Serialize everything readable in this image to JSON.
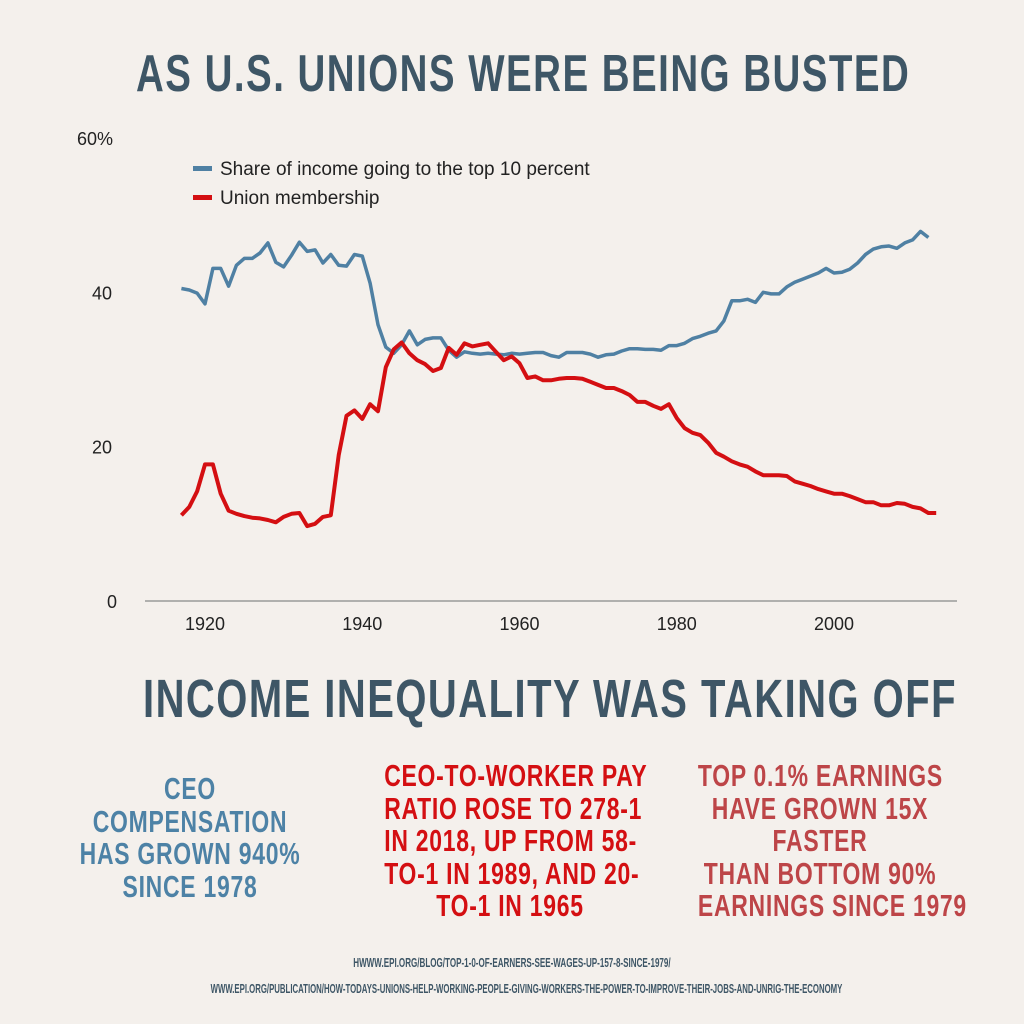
{
  "title": "AS U.S. UNIONS WERE BEING BUSTED",
  "subtitle": "INCOME INEQUALITY WAS TAKING OFF",
  "facts": [
    {
      "lines": [
        "CEO",
        "COMPENSATION",
        "HAS GROWN 940%",
        "SINCE 1978"
      ],
      "color": "#4d82a6"
    },
    {
      "lines": [
        "CEO-TO-WORKER PAY",
        "RATIO ROSE TO 278-1",
        "IN 2018, UP FROM 58-",
        "TO-1 IN 1989, AND 20-",
        "TO-1 IN 1965"
      ],
      "color": "#d40f12"
    },
    {
      "lines": [
        "TOP 0.1% EARNINGS",
        "HAVE GROWN 15X",
        "FASTER",
        "THAN BOTTOM 90%",
        "EARNINGS SINCE 1979"
      ],
      "color": "#bd4548"
    }
  ],
  "sources": [
    "HWWW.EPI.ORG/BLOG/TOP-1-0-OF-EARNERS-SEE-WAGES-UP-157-8-SINCE-1979/",
    "WWW.EPI.ORG/PUBLICATION/HOW-TODAYS-UNIONS-HELP-WORKING-PEOPLE-GIVING-WORKERS-THE-POWER-TO-IMPROVE-THEIR-JOBS-AND-UNRIG-THE-ECONOMY"
  ],
  "chart_data": {
    "type": "line",
    "xlim": [
      1915,
      2015
    ],
    "ylim": [
      0,
      60
    ],
    "x_ticks": [
      "1920",
      "1940",
      "1960",
      "1980",
      "2000"
    ],
    "y_ticks": [
      "0",
      "20",
      "40",
      "60%"
    ],
    "grid": false,
    "legend_position": "top-left",
    "x_start": 1917,
    "series": [
      {
        "name": "Share of income going to the top 10 percent",
        "color": "#4f80a3",
        "values": [
          40.5,
          40.3,
          39.9,
          38.5,
          43.1,
          43.1,
          40.8,
          43.5,
          44.4,
          44.4,
          45.1,
          46.4,
          43.9,
          43.3,
          44.8,
          46.5,
          45.3,
          45.5,
          43.8,
          44.9,
          43.5,
          43.4,
          44.9,
          44.7,
          41.2,
          35.8,
          32.9,
          32.1,
          33.2,
          35.0,
          33.2,
          33.9,
          34.1,
          34.1,
          32.5,
          31.6,
          32.3,
          32.1,
          32.0,
          32.1,
          32.0,
          31.9,
          32.1,
          32.0,
          32.1,
          32.2,
          32.2,
          31.8,
          31.6,
          32.2,
          32.2,
          32.2,
          32.0,
          31.6,
          31.9,
          32.0,
          32.4,
          32.7,
          32.7,
          32.6,
          32.6,
          32.5,
          33.1,
          33.1,
          33.4,
          34.0,
          34.3,
          34.7,
          35.0,
          36.3,
          38.9,
          38.9,
          39.1,
          38.7,
          40.0,
          39.8,
          39.8,
          40.7,
          41.3,
          41.7,
          42.1,
          42.5,
          43.1,
          42.5,
          42.6,
          43.0,
          43.8,
          44.9,
          45.6,
          45.9,
          46.0,
          45.7,
          46.4,
          46.8,
          47.9,
          47.1
        ]
      },
      {
        "name": "Union membership",
        "color": "#d40f12",
        "values": [
          11.1,
          12.2,
          14.2,
          17.7,
          17.7,
          13.9,
          11.7,
          11.3,
          11.0,
          10.8,
          10.7,
          10.5,
          10.2,
          10.9,
          11.3,
          11.4,
          9.7,
          10.0,
          10.9,
          11.1,
          18.9,
          24.0,
          24.7,
          23.6,
          25.5,
          24.6,
          30.3,
          32.6,
          33.5,
          32.1,
          31.2,
          30.7,
          29.8,
          30.2,
          32.8,
          31.9,
          33.4,
          33.0,
          33.2,
          33.4,
          32.3,
          31.2,
          31.7,
          30.8,
          28.9,
          29.1,
          28.6,
          28.6,
          28.8,
          28.9,
          28.9,
          28.8,
          28.4,
          28.0,
          27.6,
          27.6,
          27.2,
          26.7,
          25.8,
          25.8,
          25.3,
          24.9,
          25.5,
          23.7,
          22.4,
          21.8,
          21.5,
          20.5,
          19.2,
          18.7,
          18.1,
          17.7,
          17.4,
          16.8,
          16.3,
          16.3,
          16.3,
          16.2,
          15.5,
          15.2,
          14.9,
          14.5,
          14.2,
          13.9,
          13.9,
          13.6,
          13.2,
          12.8,
          12.8,
          12.4,
          12.4,
          12.7,
          12.6,
          12.2,
          12.0,
          11.4,
          11.4
        ]
      }
    ]
  }
}
